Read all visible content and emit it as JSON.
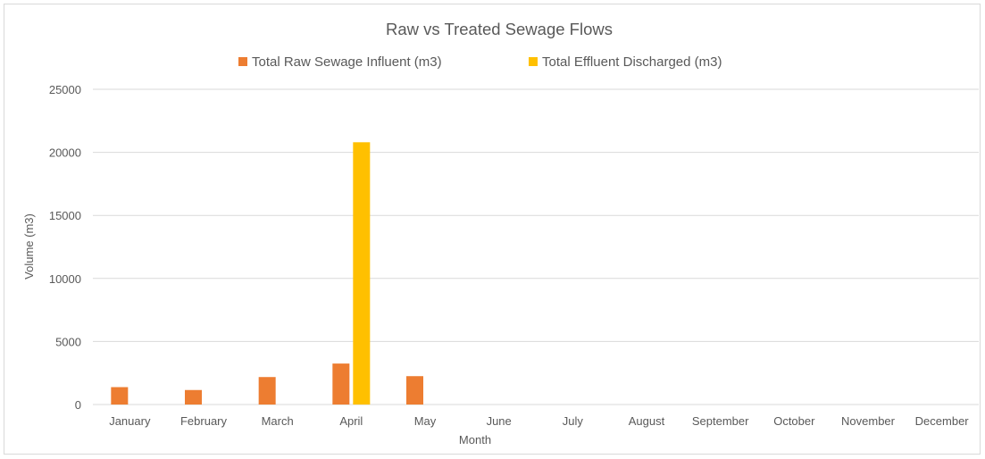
{
  "chart_data": {
    "type": "bar",
    "title": "Raw vs Treated Sewage Flows",
    "xlabel": "Month",
    "ylabel": "Volume (m3)",
    "ylim": [
      0,
      25000
    ],
    "y_ticks": [
      "0",
      "5000",
      "10000",
      "15000",
      "20000",
      "25000"
    ],
    "grid": true,
    "legend_position": "top",
    "categories": [
      "January",
      "February",
      "March",
      "April",
      "May",
      "June",
      "July",
      "August",
      "September",
      "October",
      "November",
      "December"
    ],
    "series": [
      {
        "name": "Total Raw Sewage Influent (m3)",
        "color": "#ed7d31",
        "values": [
          1380,
          1150,
          2180,
          3250,
          2250,
          0,
          0,
          0,
          0,
          0,
          0,
          0
        ]
      },
      {
        "name": "Total Effluent Discharged (m3)",
        "color": "#ffc000",
        "values": [
          0,
          0,
          0,
          20800,
          0,
          0,
          0,
          0,
          0,
          0,
          0,
          0
        ]
      }
    ]
  }
}
